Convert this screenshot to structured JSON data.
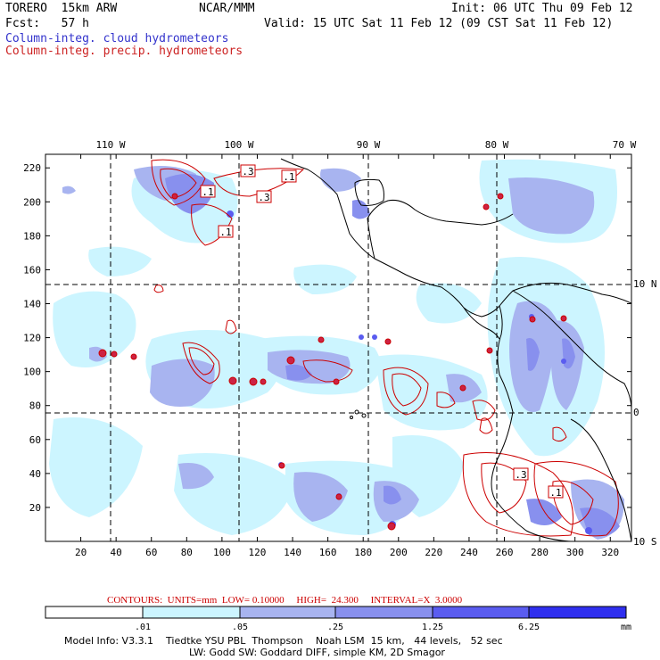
{
  "header": {
    "model": "TORERO  15km ARW",
    "org": "NCAR/MMM",
    "init": "Init: 06 UTC Thu 09 Feb 12",
    "fcst": "Fcst:   57 h",
    "valid": "Valid: 15 UTC Sat 11 Feb 12 (09 CST Sat 11 Feb 12)",
    "field_cloud": "Column-integ. cloud hydrometeors",
    "field_precip": "Column-integ. precip. hydrometeors"
  },
  "map": {
    "lon_labels": [
      "110 W",
      "100 W",
      "90 W",
      "80 W",
      "70 W"
    ],
    "lat_labels": [
      "10 N",
      "0",
      "10 S"
    ],
    "x_ticks": [
      "20",
      "40",
      "60",
      "80",
      "100",
      "120",
      "140",
      "160",
      "180",
      "200",
      "220",
      "240",
      "260",
      "280",
      "300",
      "320"
    ],
    "y_ticks": [
      "220",
      "200",
      "180",
      "160",
      "140",
      "120",
      "100",
      "80",
      "60",
      "40",
      "20"
    ],
    "contour_labels": [
      ".3",
      ".1",
      ".1",
      ".3",
      ".1",
      ".3",
      ".1"
    ],
    "colors": {
      "shade_1": "#ccf5ff",
      "shade_2": "#a8b4f0",
      "shade_3": "#8890ee",
      "shade_4": "#5a5cf0",
      "shade_5": "#2f2fef",
      "contour": "#cc0000",
      "coast": "#000000"
    }
  },
  "footer": {
    "contours_label": "CONTOURS:",
    "units": "UNITS=mm",
    "low": "LOW= 0.10000",
    "high": "HIGH=  24.300",
    "interval": "INTERVAL=X  3.0000",
    "colorbar_labels": [
      ".01",
      ".05",
      ".25",
      "1.25",
      "6.25"
    ],
    "colorbar_unit": "mm",
    "model_info_1": "Model Info: V3.3.1    Tiedtke YSU PBL  Thompson    Noah LSM  15 km,   44 levels,   52 sec",
    "model_info_2": "LW: Godd SW: Goddard DIFF, simple KM, 2D Smagor"
  }
}
